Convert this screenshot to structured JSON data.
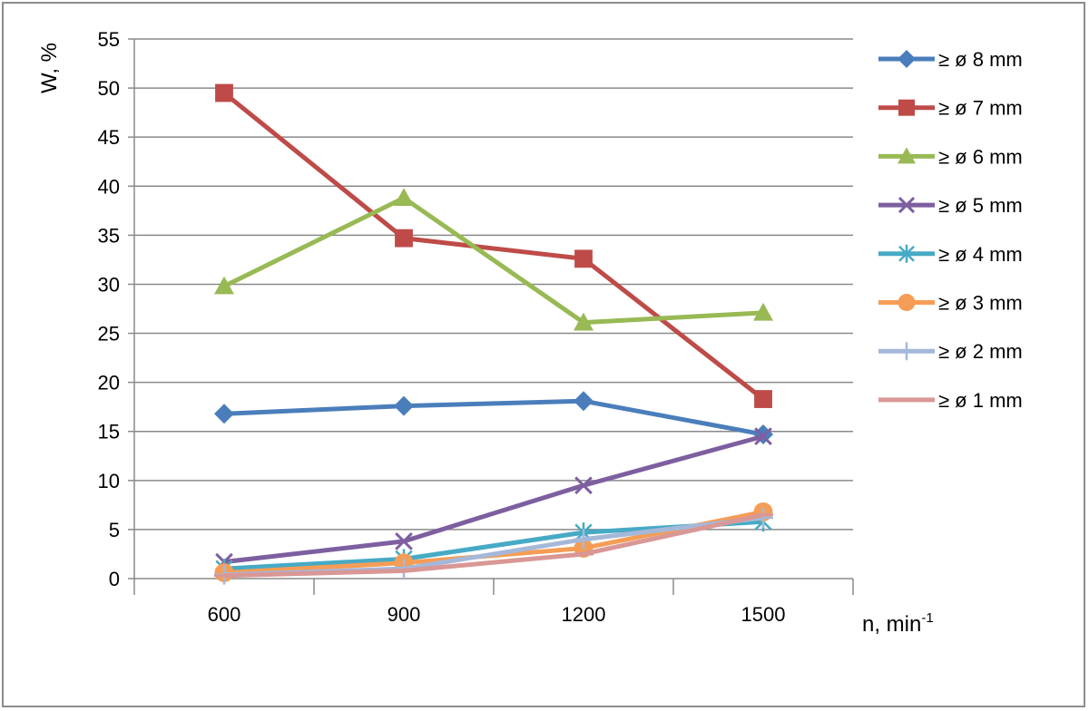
{
  "chart_data": {
    "type": "line",
    "title": "",
    "ylabel": "W, %",
    "xlabel": "n,  min",
    "xlabel_sup": "-1",
    "categories": [
      "600",
      "900",
      "1200",
      "1500"
    ],
    "ylim": [
      0,
      55
    ],
    "yticks": [
      "0",
      "5",
      "10",
      "15",
      "20",
      "25",
      "30",
      "35",
      "40",
      "45",
      "50",
      "55"
    ],
    "grid": true,
    "legend_position": "right",
    "series": [
      {
        "name": "≥ ø 8 mm",
        "color": "#4A7EBB",
        "marker": "diamond",
        "values": [
          16.8,
          17.6,
          18.1,
          14.7
        ]
      },
      {
        "name": "≥ ø 7 mm",
        "color": "#BE4B48",
        "marker": "square",
        "values": [
          49.5,
          34.7,
          32.6,
          18.3
        ]
      },
      {
        "name": "≥ ø 6 mm",
        "color": "#98B954",
        "marker": "triangle",
        "values": [
          29.8,
          38.8,
          26.1,
          27.1
        ]
      },
      {
        "name": "≥ ø 5 mm",
        "color": "#7D5FA0",
        "marker": "x",
        "values": [
          1.7,
          3.8,
          9.5,
          14.5
        ]
      },
      {
        "name": "≥ ø 4 mm",
        "color": "#46AAC5",
        "marker": "star",
        "values": [
          1.0,
          2.0,
          4.7,
          5.8
        ]
      },
      {
        "name": "≥ ø 3 mm",
        "color": "#F59D56",
        "marker": "circle",
        "values": [
          0.6,
          1.6,
          3.1,
          6.8
        ]
      },
      {
        "name": "≥ ø 2 mm",
        "color": "#A5B8DA",
        "marker": "plus",
        "values": [
          0.4,
          1.0,
          4.0,
          6.2
        ]
      },
      {
        "name": "≥ ø 1 mm",
        "color": "#D99795",
        "marker": "dash",
        "values": [
          0.3,
          0.8,
          2.5,
          6.5
        ]
      }
    ]
  }
}
